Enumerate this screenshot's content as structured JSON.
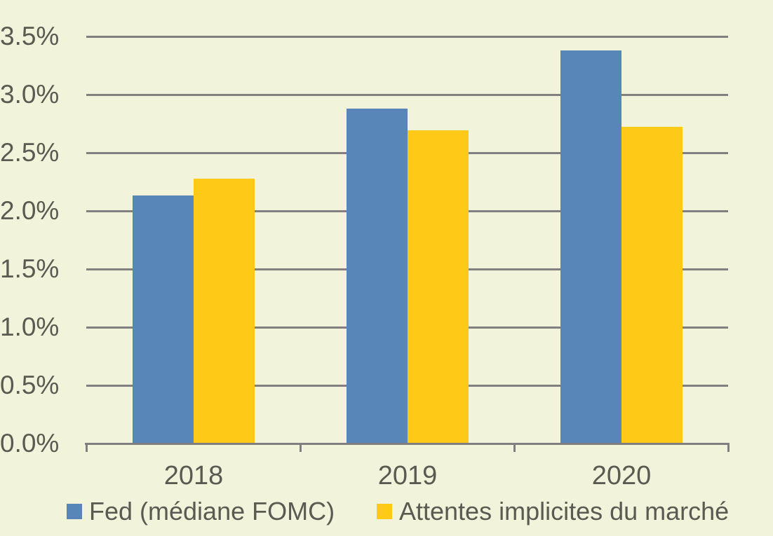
{
  "chart_data": {
    "type": "bar",
    "categories": [
      "2018",
      "2019",
      "2020"
    ],
    "series": [
      {
        "name": "Fed (médiane FOMC)",
        "color": "#5886b8",
        "values": [
          2.13,
          2.88,
          3.38
        ]
      },
      {
        "name": "Attentes implicites du marché",
        "color": "#fec917",
        "values": [
          2.28,
          2.69,
          2.72
        ]
      }
    ],
    "xlabel": "",
    "ylabel": "",
    "ylim": [
      0,
      3.5
    ],
    "y_tick_values": [
      0,
      0.5,
      1,
      1.5,
      2,
      2.5,
      3,
      3.5
    ],
    "y_tick_labels": [
      "0.0%",
      "0.5%",
      "1.0%",
      "1.5%",
      "2.0%",
      "2.5%",
      "3.0%",
      "3.5%"
    ],
    "grid": true,
    "legend_position": "bottom",
    "colors": {
      "background": "#f1f4da",
      "gridline": "#808080",
      "axis": "#7f7f7f",
      "text": "#5a5a52",
      "series_blue": "#5886b8",
      "series_yellow": "#fec917"
    }
  }
}
